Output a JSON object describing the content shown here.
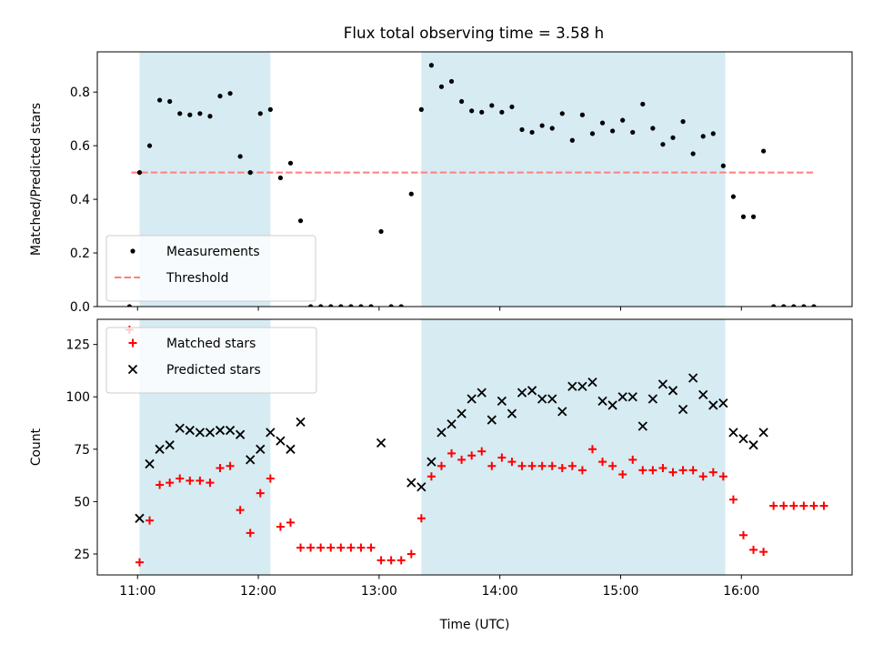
{
  "title": "Flux total observing time = 3.58 h",
  "chart_data": [
    {
      "type": "scatter",
      "xlabel": "",
      "ylabel": "Matched/Predicted stars",
      "xlim": [
        "10:40",
        "16:55"
      ],
      "ylim": [
        0,
        0.95
      ],
      "yticks": [
        0.0,
        0.2,
        0.4,
        0.6,
        0.8
      ],
      "shaded_intervals": [
        [
          "11:01",
          "12:06"
        ],
        [
          "13:21",
          "15:52"
        ]
      ],
      "shade_color": "#add8e6",
      "threshold": {
        "name": "Threshold",
        "value": 0.5,
        "x_range": [
          "10:57",
          "16:36"
        ],
        "color": "#ff7f7f"
      },
      "legend": {
        "position": "lower-left"
      },
      "series": [
        {
          "name": "Measurements",
          "color": "#000000",
          "marker": "dot",
          "points": [
            [
              "10:56",
              0.0
            ],
            [
              "11:01",
              0.5
            ],
            [
              "11:06",
              0.6
            ],
            [
              "11:11",
              0.77
            ],
            [
              "11:16",
              0.765
            ],
            [
              "11:21",
              0.72
            ],
            [
              "11:26",
              0.715
            ],
            [
              "11:31",
              0.72
            ],
            [
              "11:36",
              0.71
            ],
            [
              "11:41",
              0.785
            ],
            [
              "11:46",
              0.795
            ],
            [
              "11:51",
              0.56
            ],
            [
              "11:56",
              0.5
            ],
            [
              "12:01",
              0.72
            ],
            [
              "12:06",
              0.735
            ],
            [
              "12:11",
              0.48
            ],
            [
              "12:16",
              0.535
            ],
            [
              "12:21",
              0.32
            ],
            [
              "12:26",
              0.0
            ],
            [
              "12:31",
              0.0
            ],
            [
              "12:36",
              0.0
            ],
            [
              "12:41",
              0.0
            ],
            [
              "12:46",
              0.0
            ],
            [
              "12:51",
              0.0
            ],
            [
              "12:56",
              0.0
            ],
            [
              "13:01",
              0.28
            ],
            [
              "13:06",
              0.0
            ],
            [
              "13:11",
              0.0
            ],
            [
              "13:16",
              0.42
            ],
            [
              "13:21",
              0.735
            ],
            [
              "13:26",
              0.9
            ],
            [
              "13:31",
              0.82
            ],
            [
              "13:36",
              0.84
            ],
            [
              "13:41",
              0.765
            ],
            [
              "13:46",
              0.73
            ],
            [
              "13:51",
              0.725
            ],
            [
              "13:56",
              0.75
            ],
            [
              "14:01",
              0.725
            ],
            [
              "14:06",
              0.745
            ],
            [
              "14:11",
              0.66
            ],
            [
              "14:16",
              0.65
            ],
            [
              "14:21",
              0.675
            ],
            [
              "14:26",
              0.665
            ],
            [
              "14:31",
              0.72
            ],
            [
              "14:36",
              0.62
            ],
            [
              "14:41",
              0.715
            ],
            [
              "14:46",
              0.645
            ],
            [
              "14:51",
              0.685
            ],
            [
              "14:56",
              0.655
            ],
            [
              "15:01",
              0.695
            ],
            [
              "15:06",
              0.65
            ],
            [
              "15:11",
              0.755
            ],
            [
              "15:16",
              0.665
            ],
            [
              "15:21",
              0.605
            ],
            [
              "15:26",
              0.63
            ],
            [
              "15:31",
              0.69
            ],
            [
              "15:36",
              0.57
            ],
            [
              "15:41",
              0.635
            ],
            [
              "15:46",
              0.645
            ],
            [
              "15:51",
              0.525
            ],
            [
              "15:56",
              0.41
            ],
            [
              "16:01",
              0.335
            ],
            [
              "16:06",
              0.335
            ],
            [
              "16:11",
              0.58
            ],
            [
              "16:16",
              0.0
            ],
            [
              "16:21",
              0.0
            ],
            [
              "16:26",
              0.0
            ],
            [
              "16:31",
              0.0
            ],
            [
              "16:36",
              0.0
            ]
          ]
        }
      ]
    },
    {
      "type": "scatter",
      "xlabel": "Time (UTC)",
      "ylabel": "Count",
      "xlim": [
        "10:40",
        "16:55"
      ],
      "ylim": [
        15,
        137
      ],
      "yticks": [
        25,
        50,
        75,
        100,
        125
      ],
      "xticks": [
        "11:00",
        "12:00",
        "13:00",
        "14:00",
        "15:00",
        "16:00"
      ],
      "shaded_intervals": [
        [
          "11:01",
          "12:06"
        ],
        [
          "13:21",
          "15:52"
        ]
      ],
      "shade_color": "#add8e6",
      "legend": {
        "position": "upper-left"
      },
      "series": [
        {
          "name": "Matched stars",
          "color": "#ff0000",
          "marker": "plus",
          "points": [
            [
              "10:56",
              132
            ],
            [
              "11:01",
              21
            ],
            [
              "11:06",
              41
            ],
            [
              "11:11",
              58
            ],
            [
              "11:16",
              59
            ],
            [
              "11:21",
              61
            ],
            [
              "11:26",
              60
            ],
            [
              "11:31",
              60
            ],
            [
              "11:36",
              59
            ],
            [
              "11:41",
              66
            ],
            [
              "11:46",
              67
            ],
            [
              "11:51",
              46
            ],
            [
              "11:56",
              35
            ],
            [
              "12:01",
              54
            ],
            [
              "12:06",
              61
            ],
            [
              "12:11",
              38
            ],
            [
              "12:16",
              40
            ],
            [
              "12:21",
              28
            ],
            [
              "12:26",
              28
            ],
            [
              "12:31",
              28
            ],
            [
              "12:36",
              28
            ],
            [
              "12:41",
              28
            ],
            [
              "12:46",
              28
            ],
            [
              "12:51",
              28
            ],
            [
              "12:56",
              28
            ],
            [
              "13:01",
              22
            ],
            [
              "13:06",
              22
            ],
            [
              "13:11",
              22
            ],
            [
              "13:16",
              25
            ],
            [
              "13:21",
              42
            ],
            [
              "13:26",
              62
            ],
            [
              "13:31",
              67
            ],
            [
              "13:36",
              73
            ],
            [
              "13:41",
              70
            ],
            [
              "13:46",
              72
            ],
            [
              "13:51",
              74
            ],
            [
              "13:56",
              67
            ],
            [
              "14:01",
              71
            ],
            [
              "14:06",
              69
            ],
            [
              "14:11",
              67
            ],
            [
              "14:16",
              67
            ],
            [
              "14:21",
              67
            ],
            [
              "14:26",
              67
            ],
            [
              "14:31",
              66
            ],
            [
              "14:36",
              67
            ],
            [
              "14:41",
              65
            ],
            [
              "14:46",
              75
            ],
            [
              "14:51",
              69
            ],
            [
              "14:56",
              67
            ],
            [
              "15:01",
              63
            ],
            [
              "15:06",
              70
            ],
            [
              "15:11",
              65
            ],
            [
              "15:16",
              65
            ],
            [
              "15:21",
              66
            ],
            [
              "15:26",
              64
            ],
            [
              "15:31",
              65
            ],
            [
              "15:36",
              65
            ],
            [
              "15:41",
              62
            ],
            [
              "15:46",
              64
            ],
            [
              "15:51",
              62
            ],
            [
              "15:56",
              51
            ],
            [
              "16:01",
              34
            ],
            [
              "16:06",
              27
            ],
            [
              "16:11",
              26
            ],
            [
              "16:16",
              48
            ],
            [
              "16:21",
              48
            ],
            [
              "16:26",
              48
            ],
            [
              "16:31",
              48
            ],
            [
              "16:36",
              48
            ],
            [
              "16:41",
              48
            ]
          ]
        },
        {
          "name": "Predicted stars",
          "color": "#000000",
          "marker": "x",
          "points": [
            [
              "11:01",
              42
            ],
            [
              "11:06",
              68
            ],
            [
              "11:11",
              75
            ],
            [
              "11:16",
              77
            ],
            [
              "11:21",
              85
            ],
            [
              "11:26",
              84
            ],
            [
              "11:31",
              83
            ],
            [
              "11:36",
              83
            ],
            [
              "11:41",
              84
            ],
            [
              "11:46",
              84
            ],
            [
              "11:51",
              82
            ],
            [
              "11:56",
              70
            ],
            [
              "12:01",
              75
            ],
            [
              "12:06",
              83
            ],
            [
              "12:11",
              79
            ],
            [
              "12:16",
              75
            ],
            [
              "12:21",
              88
            ],
            [
              "13:01",
              78
            ],
            [
              "13:16",
              59
            ],
            [
              "13:21",
              57
            ],
            [
              "13:26",
              69
            ],
            [
              "13:31",
              83
            ],
            [
              "13:36",
              87
            ],
            [
              "13:41",
              92
            ],
            [
              "13:46",
              99
            ],
            [
              "13:51",
              102
            ],
            [
              "13:56",
              89
            ],
            [
              "14:01",
              98
            ],
            [
              "14:06",
              92
            ],
            [
              "14:11",
              102
            ],
            [
              "14:16",
              103
            ],
            [
              "14:21",
              99
            ],
            [
              "14:26",
              99
            ],
            [
              "14:31",
              93
            ],
            [
              "14:36",
              105
            ],
            [
              "14:41",
              105
            ],
            [
              "14:46",
              107
            ],
            [
              "14:51",
              98
            ],
            [
              "14:56",
              96
            ],
            [
              "15:01",
              100
            ],
            [
              "15:06",
              100
            ],
            [
              "15:11",
              86
            ],
            [
              "15:16",
              99
            ],
            [
              "15:21",
              106
            ],
            [
              "15:26",
              103
            ],
            [
              "15:31",
              94
            ],
            [
              "15:36",
              109
            ],
            [
              "15:41",
              101
            ],
            [
              "15:46",
              96
            ],
            [
              "15:51",
              97
            ],
            [
              "15:56",
              83
            ],
            [
              "16:01",
              80
            ],
            [
              "16:06",
              77
            ],
            [
              "16:11",
              83
            ]
          ]
        }
      ]
    }
  ]
}
